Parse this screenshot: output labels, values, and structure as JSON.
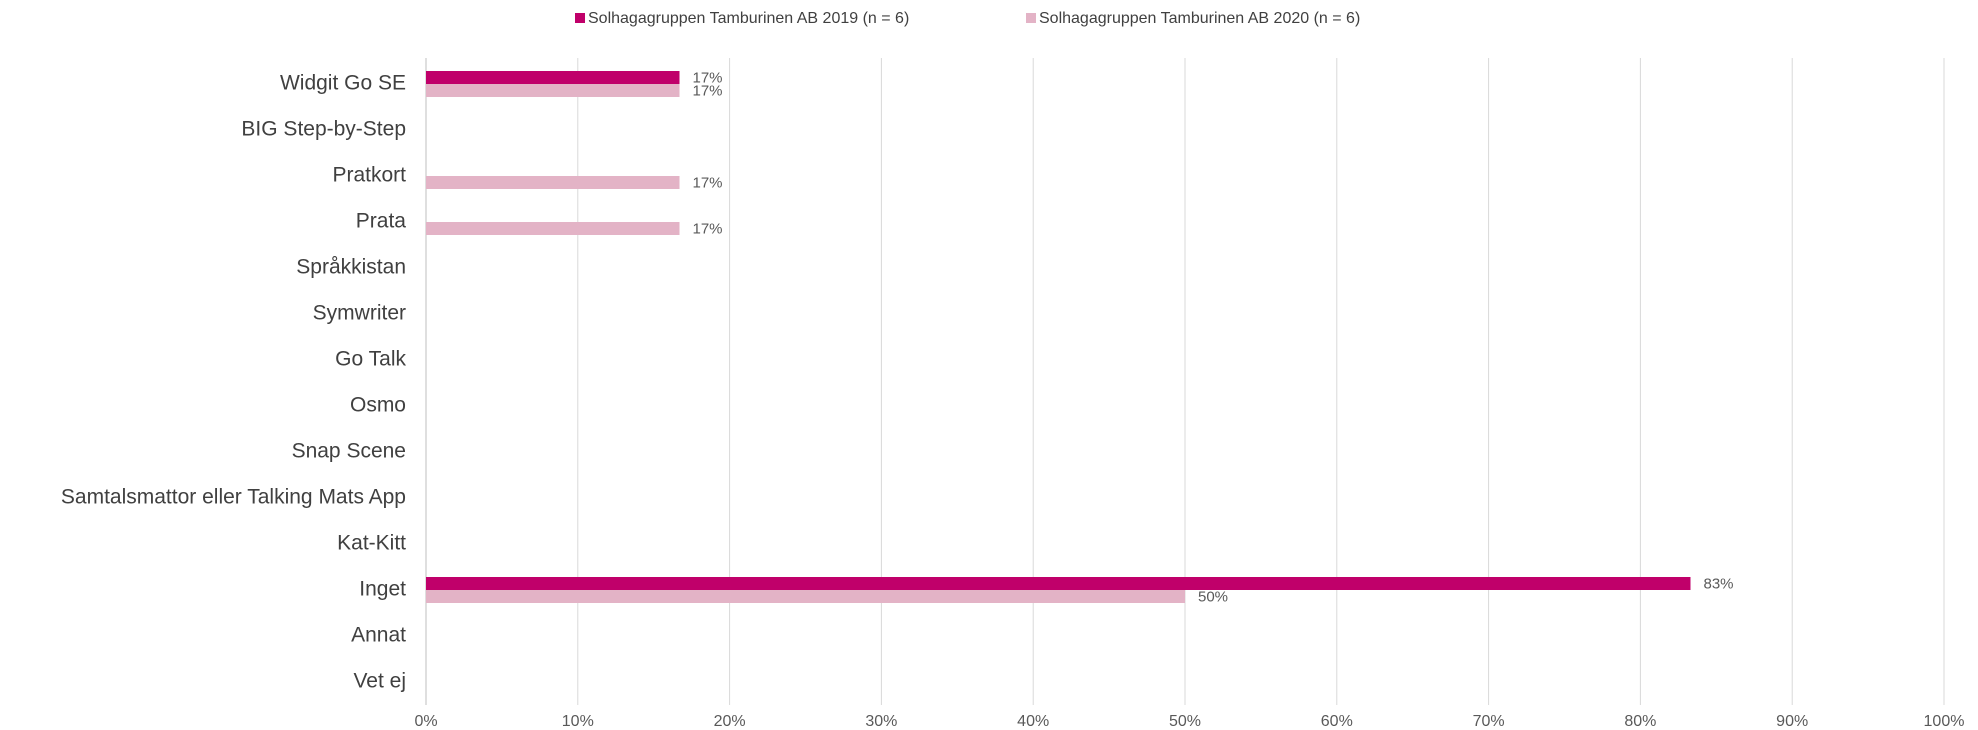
{
  "chart_data": {
    "type": "hbar",
    "categories": [
      "Widgit Go SE",
      "BIG Step-by-Step",
      "Pratkort",
      "Prata",
      "Språkkistan",
      "Symwriter",
      "Go Talk",
      "Osmo",
      "Snap Scene",
      "Samtalsmattor eller Talking Mats App",
      "Kat-Kitt",
      "Inget",
      "Annat",
      "Vet ej"
    ],
    "series": [
      {
        "name": "Solhagagruppen Tamburinen AB 2019 (n = 6)",
        "color": "#c0006a",
        "values": [
          16.7,
          0,
          0,
          0,
          0,
          0,
          0,
          0,
          0,
          0,
          0,
          83.3,
          0,
          0
        ],
        "value_labels": [
          "17%",
          null,
          null,
          null,
          null,
          null,
          null,
          null,
          null,
          null,
          null,
          "83%",
          null,
          null
        ]
      },
      {
        "name": "Solhagagruppen Tamburinen AB 2020 (n = 6)",
        "color": "#e3b3c6",
        "values": [
          16.7,
          0,
          16.7,
          16.7,
          0,
          0,
          0,
          0,
          0,
          0,
          0,
          50,
          0,
          0
        ],
        "value_labels": [
          "17%",
          null,
          "17%",
          "17%",
          null,
          null,
          null,
          null,
          null,
          null,
          null,
          "50%",
          null,
          null
        ]
      }
    ],
    "xlim": [
      0,
      100
    ],
    "xticks": [
      {
        "value": 0,
        "label": "0%"
      },
      {
        "value": 10,
        "label": "10%"
      },
      {
        "value": 20,
        "label": "20%"
      },
      {
        "value": 30,
        "label": "30%"
      },
      {
        "value": 40,
        "label": "40%"
      },
      {
        "value": 50,
        "label": "50%"
      },
      {
        "value": 60,
        "label": "60%"
      },
      {
        "value": 70,
        "label": "70%"
      },
      {
        "value": 80,
        "label": "80%"
      },
      {
        "value": 90,
        "label": "90%"
      },
      {
        "value": 100,
        "label": "100%"
      }
    ],
    "grid": true,
    "legend": "top"
  }
}
